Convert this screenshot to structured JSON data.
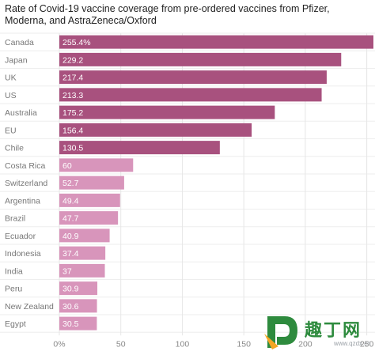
{
  "chart_data": {
    "type": "bar",
    "orientation": "horizontal",
    "title": "Rate of Covid-19 vaccine coverage from pre-ordered vaccines from Pfizer, Moderna, and AstraZeneca/Oxford",
    "categories": [
      "Canada",
      "Japan",
      "UK",
      "US",
      "Australia",
      "EU",
      "Chile",
      "Costa Rica",
      "Switzerland",
      "Argentina",
      "Brazil",
      "Ecuador",
      "Indonesia",
      "India",
      "Peru",
      "New Zealand",
      "Egypt"
    ],
    "values": [
      255.4,
      229.2,
      217.4,
      213.3,
      175.2,
      156.4,
      130.5,
      60,
      52.7,
      49.4,
      47.7,
      40.9,
      37.4,
      37,
      30.9,
      30.6,
      30.5
    ],
    "value_labels": [
      "255.4%",
      "229.2",
      "217.4",
      "213.3",
      "175.2",
      "156.4",
      "130.5",
      "60",
      "52.7",
      "49.4",
      "47.7",
      "40.9",
      "37.4",
      "37",
      "30.9",
      "30.6",
      "30.5"
    ],
    "x_ticks": [
      0,
      50,
      100,
      150,
      200,
      250
    ],
    "x_tick_labels": [
      "0%",
      "50",
      "100",
      "150",
      "200",
      "250"
    ],
    "xlim": [
      0,
      255.4
    ],
    "colors": {
      "high": "#a8517e",
      "low": "#d895bb"
    },
    "high_group_count": 7,
    "grid": true
  },
  "watermark": {
    "text": "趣丁网",
    "url": "www.qzdx.cn",
    "colors": {
      "green": "#2e8b3e",
      "orange": "#f5a623"
    }
  }
}
